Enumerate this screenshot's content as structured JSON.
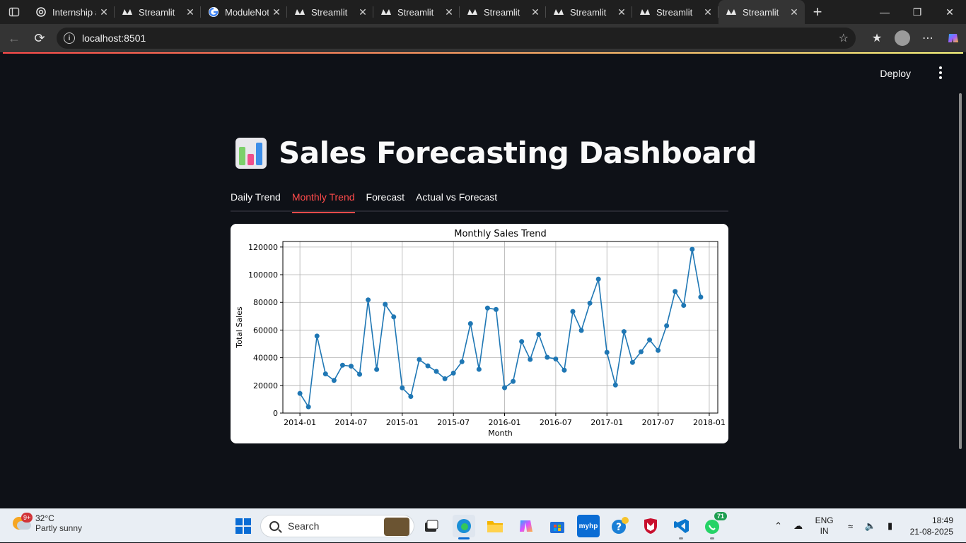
{
  "browser": {
    "tabs": [
      {
        "title": "Internship a",
        "favicon": "openai-icon",
        "active": false
      },
      {
        "title": "Streamlit",
        "favicon": "streamlit-icon",
        "active": false
      },
      {
        "title": "ModuleNot",
        "favicon": "google-icon",
        "active": false
      },
      {
        "title": "Streamlit",
        "favicon": "streamlit-icon",
        "active": false
      },
      {
        "title": "Streamlit",
        "favicon": "streamlit-icon",
        "active": false
      },
      {
        "title": "Streamlit",
        "favicon": "streamlit-icon",
        "active": false
      },
      {
        "title": "Streamlit",
        "favicon": "streamlit-icon",
        "active": false
      },
      {
        "title": "Streamlit",
        "favicon": "streamlit-icon",
        "active": false
      },
      {
        "title": "Streamlit",
        "favicon": "streamlit-icon",
        "active": true
      }
    ],
    "url": "localhost:8501"
  },
  "app": {
    "deploy_label": "Deploy",
    "title": "Sales Forecasting Dashboard",
    "title_icon": "bar-chart-icon",
    "tabs": [
      {
        "label": "Daily Trend",
        "active": false
      },
      {
        "label": "Monthly Trend",
        "active": true
      },
      {
        "label": "Forecast",
        "active": false
      },
      {
        "label": "Actual vs Forecast",
        "active": false
      }
    ],
    "colors": {
      "accent": "#ff4b4b",
      "background": "#0e1117",
      "line": "#1f77b4"
    }
  },
  "chart_data": {
    "type": "line",
    "title": "Monthly Sales Trend",
    "xlabel": "Month",
    "ylabel": "Total Sales",
    "xticks": [
      "2014-01",
      "2014-07",
      "2015-01",
      "2015-07",
      "2016-01",
      "2016-07",
      "2017-01",
      "2017-07",
      "2018-01"
    ],
    "yticks": [
      0,
      20000,
      40000,
      60000,
      80000,
      100000,
      120000
    ],
    "ylim": [
      0,
      124000
    ],
    "xlim": [
      "2013-11",
      "2018-02"
    ],
    "grid": true,
    "markers": true,
    "x": [
      "2014-01",
      "2014-02",
      "2014-03",
      "2014-04",
      "2014-05",
      "2014-06",
      "2014-07",
      "2014-08",
      "2014-09",
      "2014-10",
      "2014-11",
      "2014-12",
      "2015-01",
      "2015-02",
      "2015-03",
      "2015-04",
      "2015-05",
      "2015-06",
      "2015-07",
      "2015-08",
      "2015-09",
      "2015-10",
      "2015-11",
      "2015-12",
      "2016-01",
      "2016-02",
      "2016-03",
      "2016-04",
      "2016-05",
      "2016-06",
      "2016-07",
      "2016-08",
      "2016-09",
      "2016-10",
      "2016-11",
      "2016-12",
      "2017-01",
      "2017-02",
      "2017-03",
      "2017-04",
      "2017-05",
      "2017-06",
      "2017-07",
      "2017-08",
      "2017-09",
      "2017-10",
      "2017-11",
      "2017-12"
    ],
    "values": [
      14200,
      4500,
      55700,
      28300,
      23600,
      34600,
      33900,
      28000,
      81800,
      31500,
      78600,
      69500,
      18200,
      12000,
      38700,
      34100,
      30100,
      24800,
      28900,
      37100,
      64600,
      31600,
      75900,
      74900,
      18300,
      22900,
      51700,
      38800,
      56900,
      40300,
      39100,
      31000,
      73400,
      59700,
      79400,
      96800,
      43900,
      20300,
      58900,
      36600,
      44300,
      52900,
      45300,
      63100,
      87900,
      77800,
      118400,
      83800
    ]
  },
  "taskbar": {
    "weather_temp": "32°C",
    "weather_cond": "Partly sunny",
    "weather_badge": "9+",
    "search_placeholder": "Search",
    "whatsapp_badge": "71",
    "lang_top": "ENG",
    "lang_bottom": "IN",
    "time": "18:49",
    "date": "21-08-2025"
  }
}
